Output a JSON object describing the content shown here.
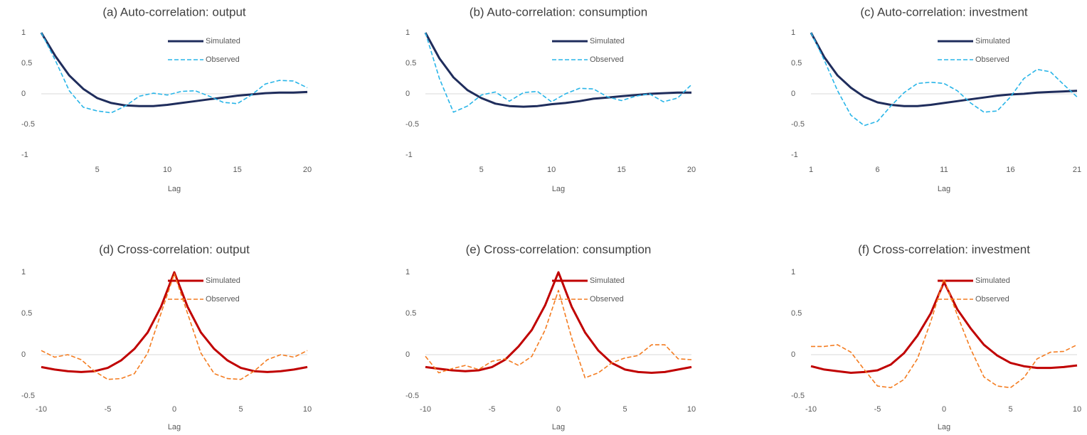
{
  "chart_data": [
    {
      "type": "line",
      "title": "(a) Auto-correlation: output",
      "x_label": "Lag",
      "x": [
        1,
        2,
        3,
        4,
        5,
        6,
        7,
        8,
        9,
        10,
        11,
        12,
        13,
        14,
        15,
        16,
        17,
        18,
        19,
        20
      ],
      "xlim": [
        1,
        20
      ],
      "xticks": [
        5,
        10,
        15,
        20
      ],
      "ylim": [
        -1,
        1
      ],
      "yticks": [
        -1,
        -0.5,
        0,
        0.5,
        1
      ],
      "legend": "upper right",
      "series": [
        {
          "name": "Simulated",
          "color": "#1f2d5c",
          "line_style": "solid",
          "values": [
            1,
            0.62,
            0.3,
            0.08,
            -0.07,
            -0.15,
            -0.19,
            -0.2,
            -0.2,
            -0.18,
            -0.15,
            -0.12,
            -0.09,
            -0.06,
            -0.03,
            -0.01,
            0.01,
            0.02,
            0.02,
            0.03
          ]
        },
        {
          "name": "Observed",
          "color": "#29b5e8",
          "line_style": "dashed",
          "values": [
            1,
            0.55,
            0.05,
            -0.22,
            -0.28,
            -0.31,
            -0.2,
            -0.04,
            0.01,
            -0.02,
            0.04,
            0.05,
            -0.04,
            -0.14,
            -0.16,
            -0.02,
            0.16,
            0.22,
            0.21,
            0.1
          ]
        }
      ]
    },
    {
      "type": "line",
      "title": "(b) Auto-correlation: consumption",
      "x_label": "Lag",
      "x": [
        1,
        2,
        3,
        4,
        5,
        6,
        7,
        8,
        9,
        10,
        11,
        12,
        13,
        14,
        15,
        16,
        17,
        18,
        19,
        20
      ],
      "xlim": [
        1,
        20
      ],
      "xticks": [
        5,
        10,
        15,
        20
      ],
      "ylim": [
        -1,
        1
      ],
      "yticks": [
        -1,
        -0.5,
        0,
        0.5,
        1
      ],
      "legend": "upper right",
      "series": [
        {
          "name": "Simulated",
          "color": "#1f2d5c",
          "line_style": "solid",
          "values": [
            1,
            0.58,
            0.27,
            0.06,
            -0.07,
            -0.16,
            -0.2,
            -0.21,
            -0.2,
            -0.17,
            -0.15,
            -0.12,
            -0.08,
            -0.06,
            -0.04,
            -0.02,
            0,
            0.01,
            0.02,
            0.02
          ]
        },
        {
          "name": "Observed",
          "color": "#29b5e8",
          "line_style": "dashed",
          "values": [
            1,
            0.25,
            -0.3,
            -0.2,
            -0.02,
            0.03,
            -0.12,
            0.02,
            0.04,
            -0.13,
            0,
            0.09,
            0.08,
            -0.05,
            -0.11,
            -0.04,
            0,
            -0.13,
            -0.07,
            0.15
          ]
        }
      ]
    },
    {
      "type": "line",
      "title": "(c) Auto-correlation: investment",
      "x_label": "Lag",
      "x": [
        1,
        2,
        3,
        4,
        5,
        6,
        7,
        8,
        9,
        10,
        11,
        12,
        13,
        14,
        15,
        16,
        17,
        18,
        19,
        20,
        21
      ],
      "xlim": [
        1,
        21
      ],
      "xticks": [
        1,
        6,
        11,
        16,
        21
      ],
      "ylim": [
        -1,
        1
      ],
      "yticks": [
        -1,
        -0.5,
        0,
        0.5,
        1
      ],
      "legend": "upper right",
      "series": [
        {
          "name": "Simulated",
          "color": "#1f2d5c",
          "line_style": "solid",
          "values": [
            1,
            0.6,
            0.3,
            0.1,
            -0.05,
            -0.14,
            -0.18,
            -0.2,
            -0.2,
            -0.18,
            -0.15,
            -0.12,
            -0.09,
            -0.06,
            -0.03,
            -0.01,
            0,
            0.02,
            0.03,
            0.04,
            0.05
          ]
        },
        {
          "name": "Observed",
          "color": "#29b5e8",
          "line_style": "dashed",
          "values": [
            1,
            0.55,
            0.05,
            -0.35,
            -0.52,
            -0.45,
            -0.2,
            0.02,
            0.17,
            0.19,
            0.17,
            0.05,
            -0.15,
            -0.3,
            -0.28,
            -0.05,
            0.25,
            0.4,
            0.36,
            0.15,
            -0.05
          ]
        }
      ]
    },
    {
      "type": "line",
      "title": "(d) Cross-correlation: output",
      "x_label": "Lag",
      "x": [
        -10,
        -9,
        -8,
        -7,
        -6,
        -5,
        -4,
        -3,
        -2,
        -1,
        0,
        1,
        2,
        3,
        4,
        5,
        6,
        7,
        8,
        9,
        10
      ],
      "xlim": [
        -10,
        10
      ],
      "xticks": [
        -10,
        -5,
        0,
        5,
        10
      ],
      "ylim": [
        -0.5,
        1
      ],
      "yticks": [
        -0.5,
        0,
        0.5,
        1
      ],
      "legend": "upper right",
      "series": [
        {
          "name": "Simulated",
          "color": "#c00000",
          "line_style": "solid",
          "values": [
            -0.15,
            -0.18,
            -0.2,
            -0.21,
            -0.2,
            -0.16,
            -0.07,
            0.07,
            0.27,
            0.58,
            1,
            0.58,
            0.27,
            0.07,
            -0.07,
            -0.16,
            -0.2,
            -0.21,
            -0.2,
            -0.18,
            -0.15
          ]
        },
        {
          "name": "Observed",
          "color": "#f47c20",
          "line_style": "dashed",
          "values": [
            0.05,
            -0.03,
            0,
            -0.06,
            -0.2,
            -0.3,
            -0.29,
            -0.23,
            0.02,
            0.5,
            0.98,
            0.5,
            0.02,
            -0.23,
            -0.29,
            -0.3,
            -0.2,
            -0.06,
            0,
            -0.03,
            0.05
          ]
        }
      ]
    },
    {
      "type": "line",
      "title": "(e) Cross-correlation: consumption",
      "x_label": "Lag",
      "x": [
        -10,
        -9,
        -8,
        -7,
        -6,
        -5,
        -4,
        -3,
        -2,
        -1,
        0,
        1,
        2,
        3,
        4,
        5,
        6,
        7,
        8,
        9,
        10
      ],
      "xlim": [
        -10,
        10
      ],
      "xticks": [
        -10,
        -5,
        0,
        5,
        10
      ],
      "ylim": [
        -0.5,
        1
      ],
      "yticks": [
        -0.5,
        0,
        0.5,
        1
      ],
      "legend": "upper right",
      "series": [
        {
          "name": "Simulated",
          "color": "#c00000",
          "line_style": "solid",
          "values": [
            -0.15,
            -0.17,
            -0.19,
            -0.2,
            -0.19,
            -0.15,
            -0.06,
            0.1,
            0.3,
            0.6,
            1,
            0.58,
            0.27,
            0.05,
            -0.1,
            -0.18,
            -0.21,
            -0.22,
            -0.21,
            -0.18,
            -0.15
          ]
        },
        {
          "name": "Observed",
          "color": "#f47c20",
          "line_style": "dashed",
          "values": [
            -0.02,
            -0.22,
            -0.17,
            -0.13,
            -0.18,
            -0.08,
            -0.05,
            -0.13,
            -0.02,
            0.3,
            0.78,
            0.2,
            -0.28,
            -0.22,
            -0.1,
            -0.04,
            -0.01,
            0.12,
            0.12,
            -0.05,
            -0.06
          ]
        }
      ]
    },
    {
      "type": "line",
      "title": "(f) Cross-correlation: investment",
      "x_label": "Lag",
      "x": [
        -10,
        -9,
        -8,
        -7,
        -6,
        -5,
        -4,
        -3,
        -2,
        -1,
        0,
        1,
        2,
        3,
        4,
        5,
        6,
        7,
        8,
        9,
        10
      ],
      "xlim": [
        -10,
        10
      ],
      "xticks": [
        -10,
        -5,
        0,
        5,
        10
      ],
      "ylim": [
        -0.5,
        1
      ],
      "yticks": [
        -0.5,
        0,
        0.5,
        1
      ],
      "legend": "upper right",
      "series": [
        {
          "name": "Simulated",
          "color": "#c00000",
          "line_style": "solid",
          "values": [
            -0.14,
            -0.18,
            -0.2,
            -0.22,
            -0.21,
            -0.19,
            -0.12,
            0.02,
            0.23,
            0.5,
            0.88,
            0.55,
            0.32,
            0.12,
            -0.01,
            -0.1,
            -0.14,
            -0.16,
            -0.16,
            -0.15,
            -0.13
          ]
        },
        {
          "name": "Observed",
          "color": "#f47c20",
          "line_style": "dashed",
          "values": [
            0.1,
            0.1,
            0.12,
            0.03,
            -0.18,
            -0.38,
            -0.4,
            -0.3,
            -0.05,
            0.4,
            0.92,
            0.48,
            0.07,
            -0.27,
            -0.38,
            -0.4,
            -0.28,
            -0.05,
            0.03,
            0.04,
            0.12
          ]
        }
      ]
    }
  ]
}
